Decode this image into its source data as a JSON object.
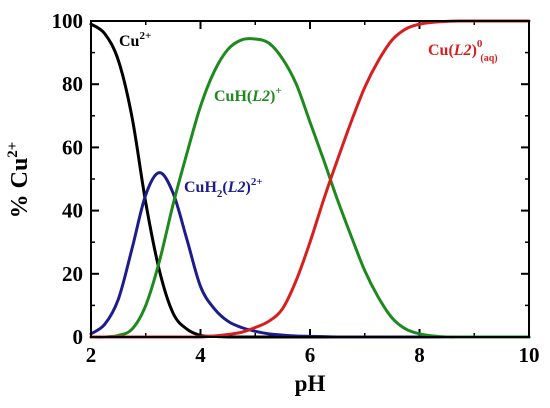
{
  "chart_data": {
    "type": "line",
    "xlabel": "pH",
    "ylabel": "% Cu2+",
    "xlim": [
      2,
      10
    ],
    "ylim": [
      0,
      100
    ],
    "xticks": [
      "2",
      "4",
      "6",
      "8",
      "10"
    ],
    "yticks": [
      "0",
      "20",
      "40",
      "60",
      "80",
      "100"
    ],
    "grid": false,
    "legend": "none",
    "x": [
      2.0,
      2.25,
      2.5,
      2.75,
      3.0,
      3.25,
      3.5,
      3.75,
      4.0,
      4.25,
      4.5,
      4.75,
      5.0,
      5.25,
      5.5,
      5.75,
      6.0,
      6.25,
      6.5,
      6.75,
      7.0,
      7.25,
      7.5,
      7.75,
      8.0,
      8.25,
      8.5,
      8.75,
      9.0,
      9.25,
      9.5,
      9.75,
      10.0
    ],
    "series": [
      {
        "name": "Cu2+",
        "color": "#000000",
        "values": [
          99,
          96,
          87.5,
          69.5,
          42.5,
          21,
          7.5,
          2.5,
          0.5,
          0.2,
          0,
          0,
          0,
          0,
          0,
          0,
          0,
          0,
          0,
          0,
          0,
          0,
          0,
          0,
          0,
          0,
          0,
          0,
          0,
          0,
          0,
          0,
          0
        ]
      },
      {
        "name": "CuH2(L2)2+",
        "color": "#1c1c8c",
        "values": [
          1,
          4,
          12,
          28,
          45,
          52,
          45.5,
          31,
          16,
          9,
          5,
          3,
          1.8,
          1,
          0.6,
          0.3,
          0.2,
          0.1,
          0,
          0,
          0,
          0,
          0,
          0,
          0,
          0,
          0,
          0,
          0,
          0,
          0,
          0,
          0
        ]
      },
      {
        "name": "CuH(L2)+",
        "color": "#1e8a1e",
        "values": [
          0,
          0,
          0.5,
          2.5,
          10,
          24,
          42,
          58,
          73,
          84,
          91,
          94,
          94.3,
          93,
          88,
          80,
          68,
          56,
          43.5,
          32,
          21,
          12.5,
          6,
          2.5,
          1,
          0.3,
          0,
          0,
          0,
          0,
          0,
          0,
          0
        ]
      },
      {
        "name": "Cu(L2)0(aq)",
        "color": "#d81f1f",
        "values": [
          0,
          0,
          0,
          0,
          0,
          0,
          0,
          0,
          0,
          0.3,
          0.8,
          1.5,
          3,
          5,
          9,
          18,
          30,
          43.5,
          56,
          68,
          79,
          87.5,
          94,
          97.5,
          99,
          99.6,
          99.9,
          100,
          100,
          100,
          100,
          100,
          100
        ]
      }
    ]
  },
  "annotations": {
    "cu": {
      "base": "Cu",
      "sup": "2+"
    },
    "cuh2": {
      "base": "CuH",
      "sub": "2",
      "open": "(",
      "ligand": "L2",
      "close": ")",
      "sup": "2+"
    },
    "cuh": {
      "base": "CuH(",
      "ligand": "L2",
      "close": ")",
      "sup": "+"
    },
    "cul": {
      "base": "Cu(",
      "ligand": "L2",
      "close": ")",
      "sup": "0",
      "sub": "(aq)"
    }
  },
  "axis_title": {
    "x": "pH",
    "y_base": "% Cu",
    "y_sup": "2+"
  }
}
